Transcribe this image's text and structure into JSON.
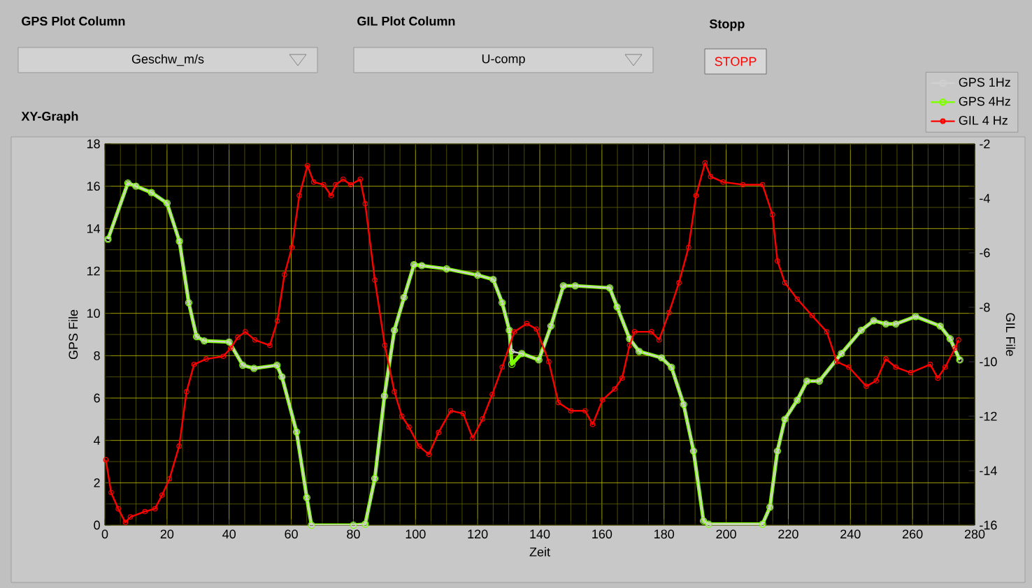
{
  "chart_data": {
    "type": "line",
    "title": "XY-Graph",
    "xlabel": "Zeit",
    "ylabel": "GPS File",
    "y2label": "GIL File",
    "annotations": [
      "GPS Plot Column",
      "Geschw_m/s",
      "GIL Plot Column",
      "U-comp",
      "Stopp",
      "STOPP"
    ],
    "xlim": [
      0,
      280
    ],
    "xticks": [
      0,
      {
        "value": 5,
        "label": null
      },
      {
        "value": 10,
        "label": null
      },
      {
        "value": 15,
        "label": null
      },
      20,
      {
        "value": 25,
        "label": null
      },
      {
        "value": 30,
        "label": null
      },
      {
        "value": 35,
        "label": null
      },
      40,
      {
        "value": 45,
        "label": null
      },
      {
        "value": 50,
        "label": null
      },
      {
        "value": 55,
        "label": null
      },
      60,
      {
        "value": 65,
        "label": null
      },
      {
        "value": 70,
        "label": null
      },
      {
        "value": 75,
        "label": null
      },
      80,
      {
        "value": 85,
        "label": null
      },
      {
        "value": 90,
        "label": null
      },
      {
        "value": 95,
        "label": null
      },
      100,
      {
        "value": 105,
        "label": null
      },
      {
        "value": 110,
        "label": null
      },
      {
        "value": 115,
        "label": null
      },
      120,
      {
        "value": 125,
        "label": null
      },
      {
        "value": 130,
        "label": null
      },
      {
        "value": 135,
        "label": null
      },
      140,
      {
        "value": 145,
        "label": null
      },
      {
        "value": 150,
        "label": null
      },
      {
        "value": 155,
        "label": null
      },
      160,
      {
        "value": 165,
        "label": null
      },
      {
        "value": 170,
        "label": null
      },
      {
        "value": 175,
        "label": null
      },
      180,
      {
        "value": 185,
        "label": null
      },
      {
        "value": 190,
        "label": null
      },
      {
        "value": 195,
        "label": null
      },
      200,
      {
        "value": 205,
        "label": null
      },
      {
        "value": 210,
        "label": null
      },
      {
        "value": 215,
        "label": null
      },
      220,
      {
        "value": 225,
        "label": null
      },
      {
        "value": 230,
        "label": null
      },
      {
        "value": 235,
        "label": null
      },
      240,
      {
        "value": 245,
        "label": null
      },
      {
        "value": 250,
        "label": null
      },
      {
        "value": 255,
        "label": null
      },
      260,
      {
        "value": 265,
        "label": null
      },
      {
        "value": 270,
        "label": null
      },
      {
        "value": 275,
        "label": null
      },
      280
    ],
    "ylim": [
      0,
      18
    ],
    "yticks": [
      0,
      {
        "value": 1,
        "label": null
      },
      2,
      {
        "value": 3,
        "label": null
      },
      4,
      {
        "value": 5,
        "label": null
      },
      6,
      {
        "value": 7,
        "label": null
      },
      8,
      {
        "value": 9,
        "label": null
      },
      10,
      {
        "value": 11,
        "label": null
      },
      12,
      {
        "value": 13,
        "label": null
      },
      14,
      {
        "value": 15,
        "label": null
      },
      16,
      {
        "value": 17,
        "label": null
      },
      18
    ],
    "y2lim": [
      -16,
      -2
    ],
    "y2ticks": [
      -16,
      -14,
      -12,
      -10,
      -8,
      -6,
      -4,
      -2
    ],
    "grid": true,
    "legend": "top right",
    "marker": "circle",
    "series": [
      {
        "name": "GPS 1Hz",
        "color": "#d0d0d0",
        "x": [
          1,
          7.4,
          10,
          15,
          20,
          24,
          27,
          29.5,
          32,
          40,
          44.4,
          48,
          55.4,
          57,
          61.7,
          65,
          66.5,
          80,
          83.8,
          86.9,
          90,
          93.2,
          96.3,
          99.5,
          102,
          110,
          120,
          125,
          127.9,
          130.2,
          131,
          134.2,
          139.7,
          143.6,
          147.6,
          151.4,
          162.5,
          164.9,
          168.9,
          172,
          179.2,
          182.4,
          186.3,
          189.5,
          192.7,
          194.3,
          211.7,
          214.1,
          216.5,
          218.9,
          222.9,
          226,
          230,
          237.1,
          243.5,
          247.5,
          251.4,
          254.6,
          261,
          268.9,
          272.1,
          275.2
        ],
        "values": [
          13.5,
          16.15,
          16.0,
          15.7,
          15.2,
          13.4,
          10.5,
          8.9,
          8.7,
          8.65,
          7.55,
          7.4,
          7.55,
          7.0,
          4.4,
          1.3,
          0,
          0,
          0.05,
          2.2,
          6.1,
          9.2,
          10.75,
          12.3,
          12.25,
          12.1,
          11.8,
          11.6,
          10.5,
          9.2,
          8.2,
          8.1,
          7.8,
          9.4,
          11.3,
          11.3,
          11.2,
          10.3,
          8.8,
          8.2,
          7.9,
          7.45,
          5.7,
          3.5,
          0.2,
          0.05,
          0.05,
          0.85,
          3.5,
          5.0,
          5.9,
          6.8,
          6.8,
          8.1,
          9.2,
          9.65,
          9.5,
          9.5,
          9.85,
          9.4,
          8.8,
          7.8
        ]
      },
      {
        "name": "GPS 4Hz",
        "color": "#80ff00",
        "x": [
          1,
          7.4,
          10,
          15,
          20,
          24,
          27,
          29.5,
          32,
          40,
          44.4,
          48,
          55.4,
          57,
          61.7,
          65,
          66.5,
          80,
          83.8,
          86.9,
          90,
          93.2,
          96.3,
          99.5,
          102,
          110,
          120,
          125,
          127.9,
          130.2,
          131,
          134.2,
          139.7,
          143.6,
          147.6,
          151.4,
          162.5,
          164.9,
          168.9,
          172,
          179.2,
          182.4,
          186.3,
          189.5,
          192.7,
          194.3,
          211.7,
          214.1,
          216.5,
          218.9,
          222.9,
          226,
          230,
          237.1,
          243.5,
          247.5,
          251.4,
          254.6,
          261,
          268.9,
          272.1,
          275.2
        ],
        "values": [
          13.5,
          16.15,
          16.0,
          15.7,
          15.2,
          13.4,
          10.5,
          8.9,
          8.7,
          8.65,
          7.55,
          7.4,
          7.55,
          7.0,
          4.4,
          1.3,
          0,
          0,
          0.05,
          2.2,
          6.1,
          9.2,
          10.75,
          12.3,
          12.25,
          12.1,
          11.8,
          11.6,
          10.5,
          9.2,
          7.6,
          8.1,
          7.8,
          9.4,
          11.3,
          11.3,
          11.2,
          10.3,
          8.8,
          8.2,
          7.9,
          7.45,
          5.7,
          3.5,
          0.2,
          0.05,
          0.05,
          0.85,
          3.5,
          5.0,
          5.9,
          6.8,
          6.8,
          8.1,
          9.2,
          9.65,
          9.5,
          9.5,
          9.85,
          9.4,
          8.8,
          7.8
        ]
      },
      {
        "name": "GIL 4 Hz",
        "color": "#ff0000",
        "axis": "y2",
        "x": [
          0.3,
          2,
          4.3,
          6.6,
          8.2,
          12.9,
          16.1,
          18.4,
          20.8,
          23.9,
          26.3,
          28.7,
          32.6,
          38.1,
          40.5,
          42.8,
          45.2,
          48.3,
          53.1,
          55.5,
          57.8,
          60.2,
          62.6,
          65.2,
          67.2,
          70.4,
          72.8,
          74.3,
          76.7,
          79.1,
          82.2,
          83.8,
          86.9,
          90.1,
          93.2,
          95.6,
          97.9,
          101.1,
          104.3,
          107.4,
          111.3,
          115.3,
          118.4,
          121.6,
          124.7,
          127.9,
          131.8,
          135.8,
          138.9,
          142.9,
          146,
          150,
          154.6,
          157,
          160.2,
          164.1,
          166.5,
          168.9,
          170.5,
          176,
          178.4,
          181.6,
          184.8,
          187.9,
          190.3,
          193.2,
          195,
          199,
          205.4,
          211.7,
          214.9,
          216.5,
          218.9,
          222.9,
          227.6,
          232.4,
          235.6,
          239.5,
          245.1,
          248.3,
          251.4,
          254.6,
          259.4,
          265.7,
          268.1,
          270.5,
          273.7,
          274.8
        ],
        "values": [
          -13.6,
          -14.8,
          -15.4,
          -15.9,
          -15.7,
          -15.5,
          -15.4,
          -14.9,
          -14.3,
          -13.1,
          -11.1,
          -10.1,
          -9.9,
          -9.8,
          -9.5,
          -9.1,
          -8.9,
          -9.2,
          -9.4,
          -8.5,
          -6.8,
          -5.8,
          -3.9,
          -2.8,
          -3.4,
          -3.5,
          -3.9,
          -3.5,
          -3.3,
          -3.5,
          -3.3,
          -4.2,
          -7.0,
          -9.4,
          -11.1,
          -12.0,
          -12.4,
          -13.1,
          -13.4,
          -12.6,
          -11.8,
          -11.9,
          -12.8,
          -12.1,
          -11.2,
          -10.2,
          -8.9,
          -8.6,
          -8.8,
          -10.0,
          -11.5,
          -11.8,
          -11.8,
          -12.3,
          -11.4,
          -11.0,
          -10.6,
          -9.4,
          -8.9,
          -8.9,
          -9.2,
          -8.2,
          -7.1,
          -5.8,
          -3.9,
          -2.7,
          -3.2,
          -3.4,
          -3.5,
          -3.5,
          -4.6,
          -6.3,
          -7.1,
          -7.7,
          -8.3,
          -8.9,
          -10.0,
          -10.2,
          -10.9,
          -10.7,
          -9.9,
          -10.2,
          -10.4,
          -10.1,
          -10.6,
          -10.2,
          -9.5,
          -9.2
        ]
      }
    ]
  }
}
